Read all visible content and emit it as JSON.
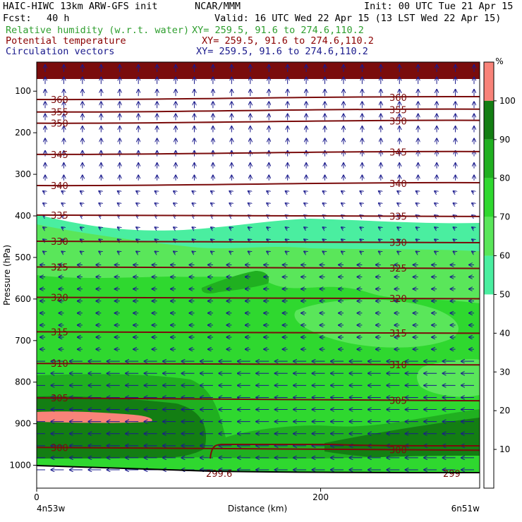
{
  "header": {
    "model": "HAIC-HIWC 13km ARW-GFS init",
    "center": "NCAR/MMM",
    "init": "Init: 00 UTC Tue 21 Apr 15",
    "fcst_label": "Fcst:",
    "fcst_value": "40 h",
    "valid": "Valid: 16 UTC Wed 22 Apr 15 (13 LST Wed 22 Apr 15)",
    "fields": [
      {
        "name": "Relative humidity (w.r.t. water)",
        "xy": "XY= 259.5, 91.6 to 274.6,110.2",
        "color": "#2e9e2e"
      },
      {
        "name": "Potential temperature",
        "xy": "XY= 259.5, 91.6 to 274.6,110.2",
        "color": "#8b0000"
      },
      {
        "name": "Circulation vectors",
        "xy": "XY= 259.5, 91.6 to 274.6,110.2",
        "color": "#1a1a8c"
      }
    ]
  },
  "chart_data": {
    "type": "heatmap",
    "xlabel": "Distance (km)",
    "ylabel": "Pressure (hPa)",
    "x_ticks": [
      0,
      200
    ],
    "x_range": [
      0,
      312
    ],
    "x_end_labels": [
      "4n53w",
      "6n51w"
    ],
    "y_ticks": [
      100,
      200,
      300,
      400,
      500,
      600,
      700,
      800,
      900,
      1000
    ],
    "y_range": [
      30,
      1055
    ],
    "colorbar": {
      "unit": "%",
      "levels": [
        10,
        20,
        30,
        40,
        50,
        60,
        70,
        80,
        90,
        100
      ],
      "colors": [
        "#ffffff",
        "#ffffff",
        "#ffffff",
        "#ffffff",
        "#ffffff",
        "#4aeea0",
        "#5ae65a",
        "#2fd82f",
        "#20b020",
        "#137e13",
        "#f88379"
      ]
    },
    "rh_regions": [
      {
        "label": "60-70",
        "color": "#4aeea0"
      },
      {
        "label": "70-80",
        "color": "#5ae65a"
      },
      {
        "label": "80-90",
        "color": "#2fd82f"
      },
      {
        "label": "90-100",
        "color": "#20b020"
      },
      {
        "label": ">100",
        "color": "#f88379"
      }
    ],
    "theta_contours": [
      {
        "value": 360,
        "p": 120,
        "label": "360"
      },
      {
        "value": 355,
        "p": 150,
        "label": "355"
      },
      {
        "value": 350,
        "p": 177,
        "label": "350"
      },
      {
        "value": 345,
        "p": 252,
        "label": "345"
      },
      {
        "value": 340,
        "p": 327,
        "label": "340"
      },
      {
        "value": 335,
        "p": 398,
        "label": "335"
      },
      {
        "value": 330,
        "p": 461,
        "label": "330"
      },
      {
        "value": 325,
        "p": 523,
        "label": "325"
      },
      {
        "value": 320,
        "p": 596,
        "label": "320"
      },
      {
        "value": 315,
        "p": 679,
        "label": "315"
      },
      {
        "value": 310,
        "p": 755,
        "label": "310"
      },
      {
        "value": 305,
        "p": 838,
        "label": "305"
      },
      {
        "value": 300,
        "p": 957,
        "label": "300"
      },
      {
        "value": 299.6,
        "p": 1005,
        "label": "299.6"
      },
      {
        "value": 299,
        "p": 1010,
        "label": "299"
      }
    ],
    "wind_vectors": "circulation vectors: mostly easterly (pointing left) in lower/mid troposphere, northward-pointing in upper troposphere"
  }
}
